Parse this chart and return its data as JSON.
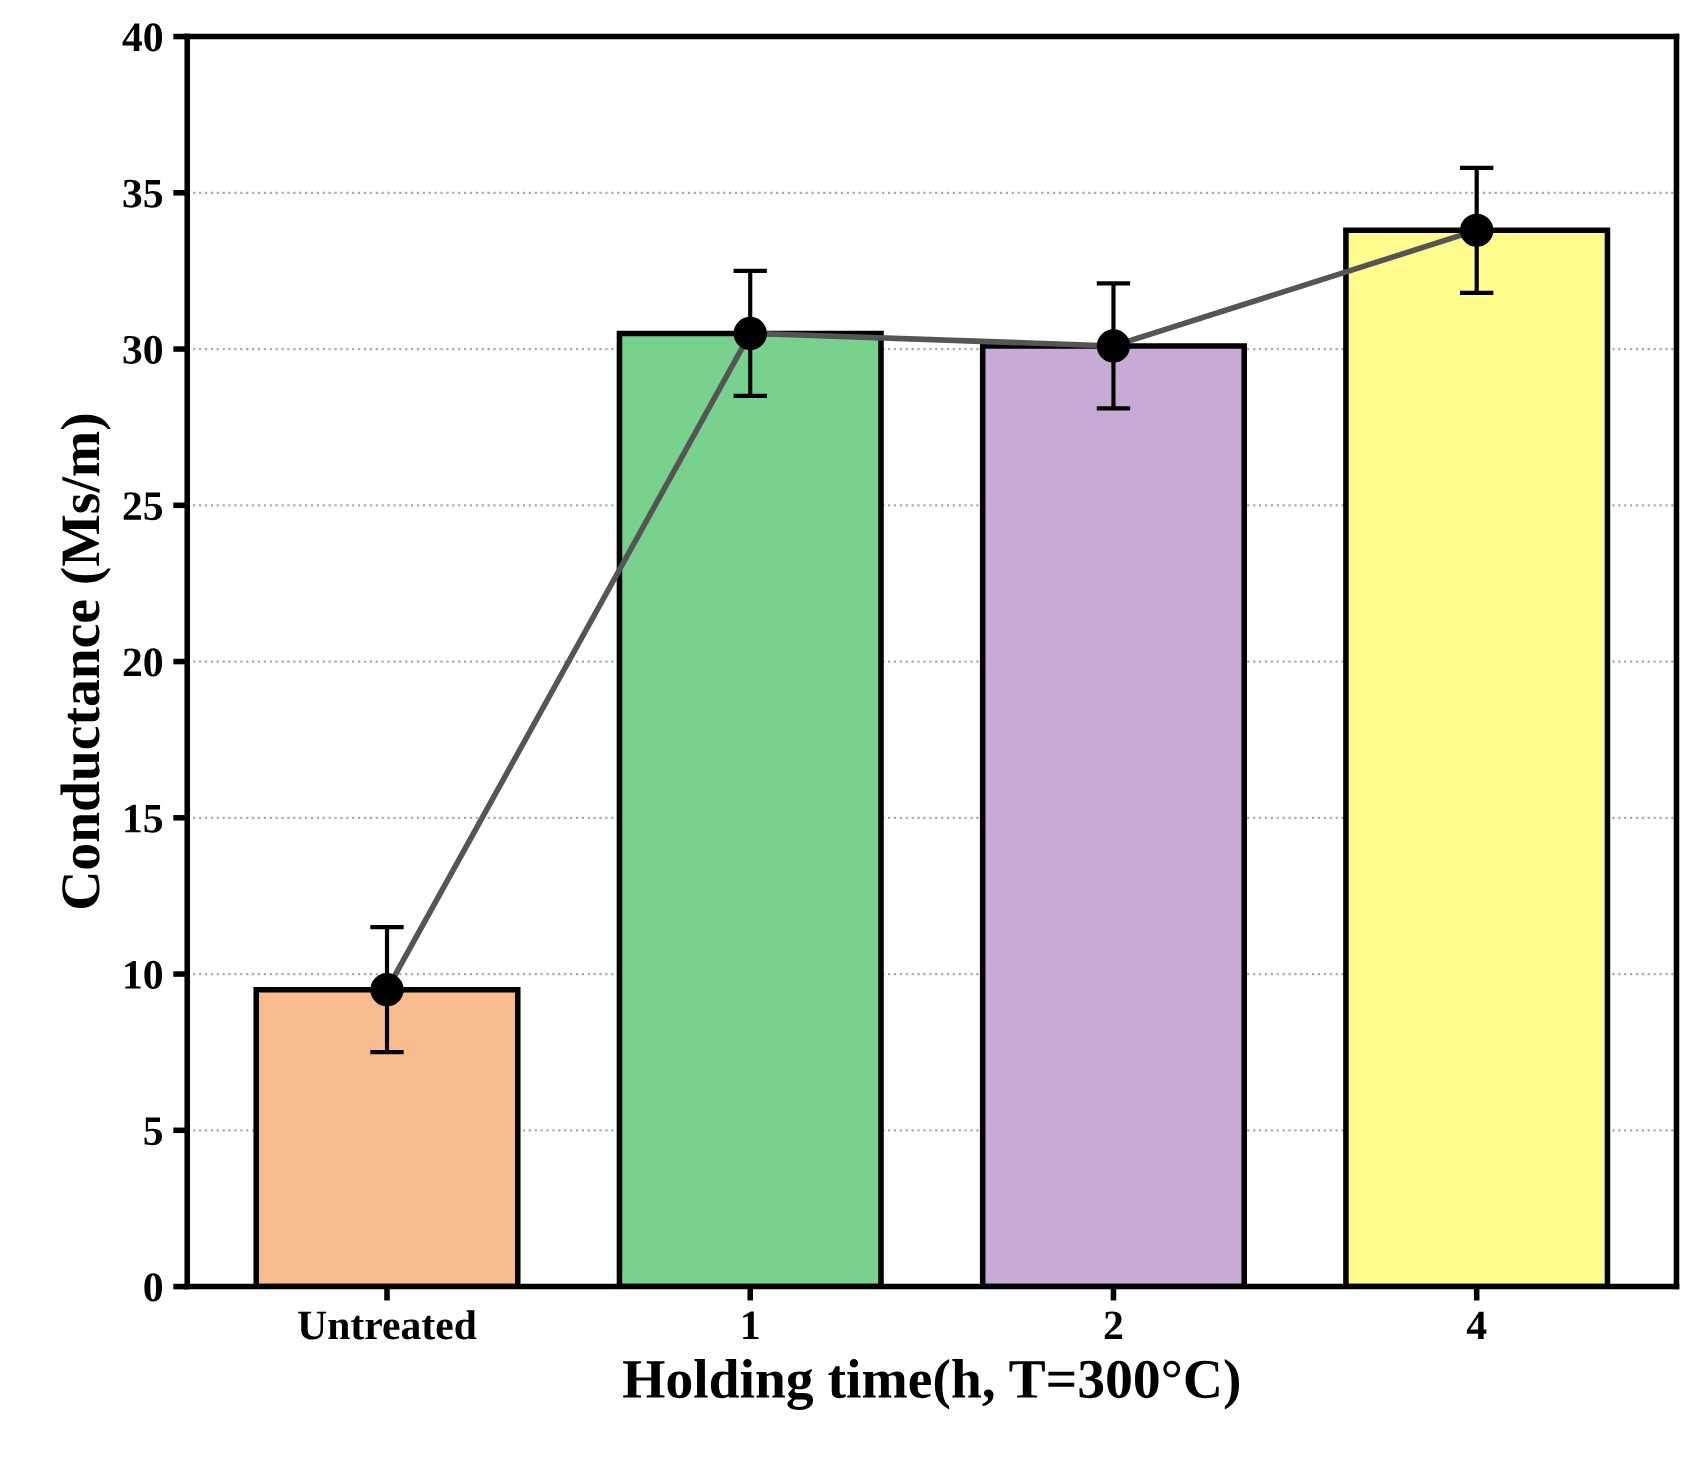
{
  "chart_data": {
    "type": "bar",
    "xlabel": "Holding time(h, T=300°C)",
    "ylabel": "Conductance (Ms/m)",
    "categories": [
      "Untreated",
      "1",
      "2",
      "4"
    ],
    "series": [
      {
        "colors": [
          "#f9bc8e",
          "#78d28e",
          "#c8aad6",
          "#fdfc8c"
        ],
        "values": [
          9.5,
          30.5,
          30.1,
          33.8
        ]
      },
      {
        "type": "line",
        "color": "#555555",
        "marker": "circle",
        "values": [
          9.5,
          30.5,
          30.1,
          33.8
        ],
        "errors": [
          2,
          2,
          2,
          2
        ]
      }
    ],
    "ylim": [
      0,
      40
    ],
    "yticks": [
      0,
      5,
      10,
      15,
      20,
      25,
      30,
      35,
      40
    ],
    "grid": "y"
  }
}
